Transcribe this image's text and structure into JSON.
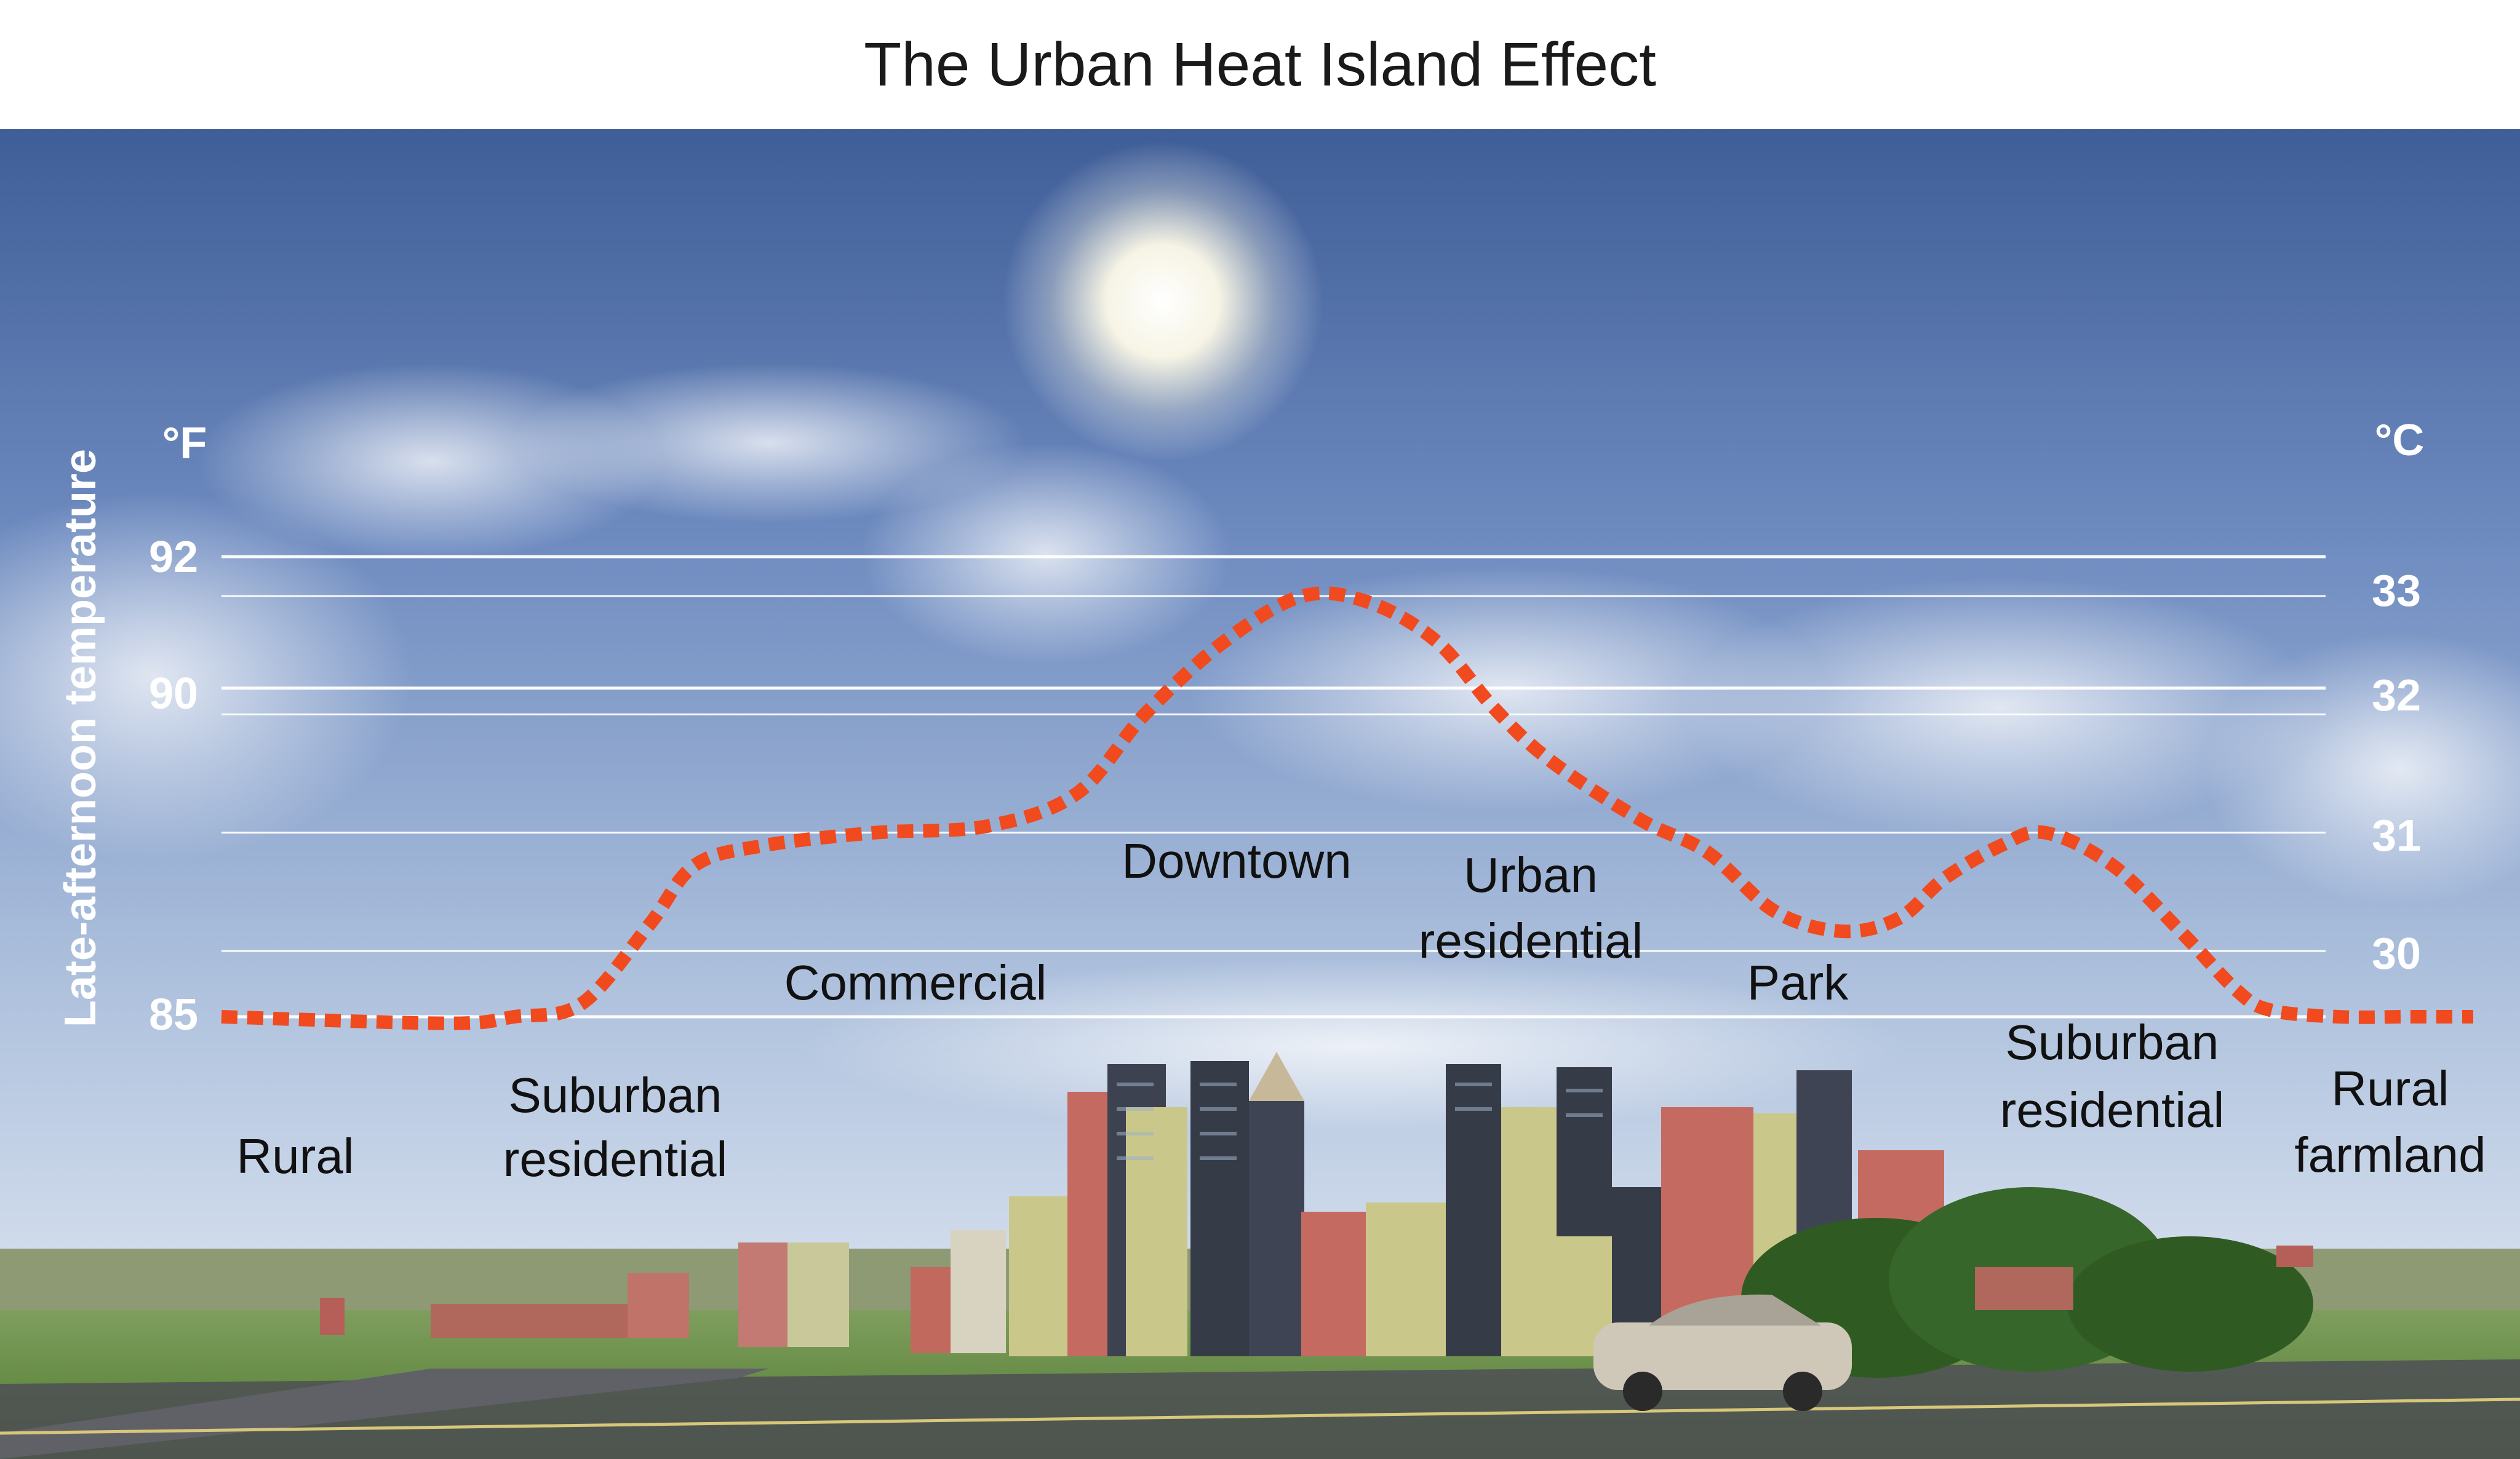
{
  "title": "The Urban Heat Island Effect",
  "chart_data": {
    "type": "line",
    "title": "The Urban Heat Island Effect",
    "ylabel": "Late-afternoon temperature",
    "y_unit_left": "°F",
    "y_unit_right": "°C",
    "ylim": [
      85,
      92
    ],
    "yticks_left": [
      85,
      90,
      92
    ],
    "yticks_right": [
      30,
      31,
      32,
      33
    ],
    "grid": true,
    "series": [
      {
        "x": [
          0.0,
          0.1,
          0.13,
          0.16,
          0.19,
          0.21,
          0.24,
          0.29,
          0.34,
          0.38,
          0.41,
          0.445,
          0.48,
          0.51,
          0.54,
          0.565,
          0.59,
          0.63,
          0.66,
          0.69,
          0.72,
          0.745,
          0.765,
          0.79,
          0.81,
          0.84,
          0.87,
          0.895,
          0.91,
          0.94,
          0.97,
          1.0
        ],
        "values": [
          85.0,
          84.9,
          85.0,
          85.2,
          86.4,
          87.3,
          87.6,
          87.8,
          87.9,
          88.4,
          89.6,
          90.7,
          91.4,
          91.3,
          90.7,
          89.7,
          88.9,
          88.0,
          87.5,
          86.6,
          86.3,
          86.5,
          87.1,
          87.6,
          87.8,
          87.3,
          86.3,
          85.4,
          85.1,
          85.0,
          85.0,
          85.0
        ],
        "color": "#f04a1e"
      }
    ],
    "zones": [
      "Rural",
      "Suburban residential",
      "Commercial",
      "Downtown",
      "Urban residential",
      "Park",
      "Suburban residential",
      "Rural farmland"
    ]
  },
  "labels": {
    "y_axis": "Late-afternoon temperature",
    "unit_f": "°F",
    "unit_c": "°C",
    "f92": "92",
    "f90": "90",
    "f85": "85",
    "c33": "33",
    "c32": "32",
    "c31": "31",
    "c30": "30",
    "rural": "Rural",
    "sub1_a": "Suburban",
    "sub1_b": "residential",
    "commercial": "Commercial",
    "downtown": "Downtown",
    "urb_a": "Urban",
    "urb_b": "residential",
    "park": "Park",
    "sub2_a": "Suburban",
    "sub2_b": "residential",
    "farm_a": "Rural",
    "farm_b": "farmland"
  },
  "colors": {
    "curve": "#f04a1e",
    "sky_top": "#3f5d97",
    "sky_mid": "#8ea8d2",
    "sky_bottom": "#d6e0ee",
    "grass": "#5d8a3a",
    "road": "#4d4f55"
  }
}
